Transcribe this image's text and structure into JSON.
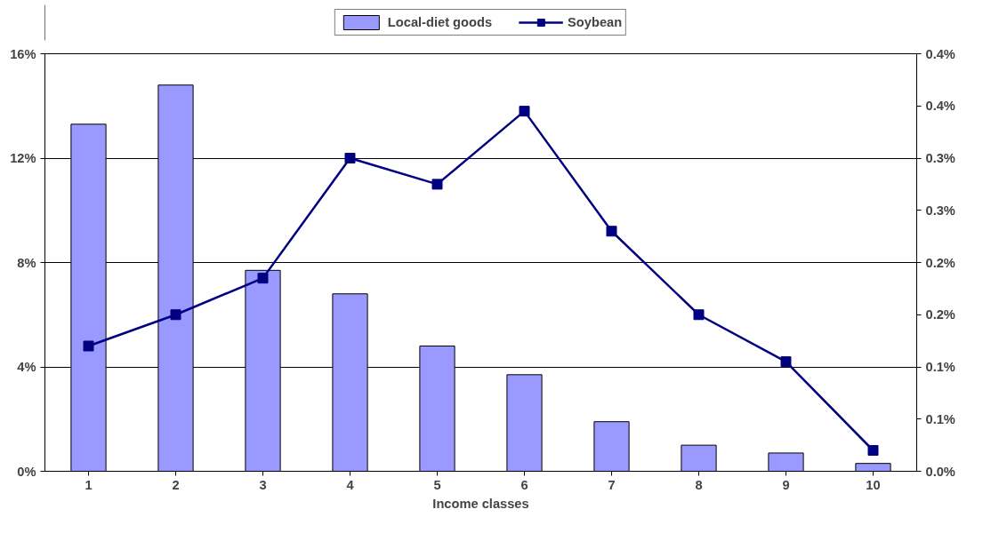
{
  "chart_data": {
    "type": "bar",
    "xlabel": "Income classes",
    "categories": [
      "1",
      "2",
      "3",
      "4",
      "5",
      "6",
      "7",
      "8",
      "9",
      "10"
    ],
    "series": [
      {
        "name": "Local-diet goods",
        "color": "#9999ff",
        "values": [
          13.3,
          14.8,
          7.7,
          6.8,
          4.8,
          3.7,
          1.9,
          1.0,
          0.7,
          0.3
        ]
      },
      {
        "name": "Soybean",
        "type": "line",
        "axis": "y2",
        "color": "#000080",
        "marker": "square",
        "values": [
          0.12,
          0.15,
          0.185,
          0.3,
          0.275,
          0.345,
          0.23,
          0.15,
          0.105,
          0.02
        ]
      }
    ],
    "ylim": [
      0,
      16
    ],
    "yticks": [
      {
        "value": 0,
        "label": "0%"
      },
      {
        "value": 4,
        "label": "4%"
      },
      {
        "value": 8,
        "label": "8%"
      },
      {
        "value": 12,
        "label": "12%"
      },
      {
        "value": 16,
        "label": "16%"
      }
    ],
    "y2lim": [
      0,
      0.4
    ],
    "y2ticks": [
      {
        "value": 0,
        "label": "0.0%"
      },
      {
        "value": 0.05,
        "label": "0.1%"
      },
      {
        "value": 0.1,
        "label": "0.1%"
      },
      {
        "value": 0.15,
        "label": "0.2%"
      },
      {
        "value": 0.2,
        "label": "0.2%"
      },
      {
        "value": 0.25,
        "label": "0.3%"
      },
      {
        "value": 0.3,
        "label": "0.3%"
      },
      {
        "value": 0.35,
        "label": "0.4%"
      },
      {
        "value": 0.4,
        "label": "0.4%"
      }
    ],
    "grid": "y",
    "legend": "top"
  }
}
